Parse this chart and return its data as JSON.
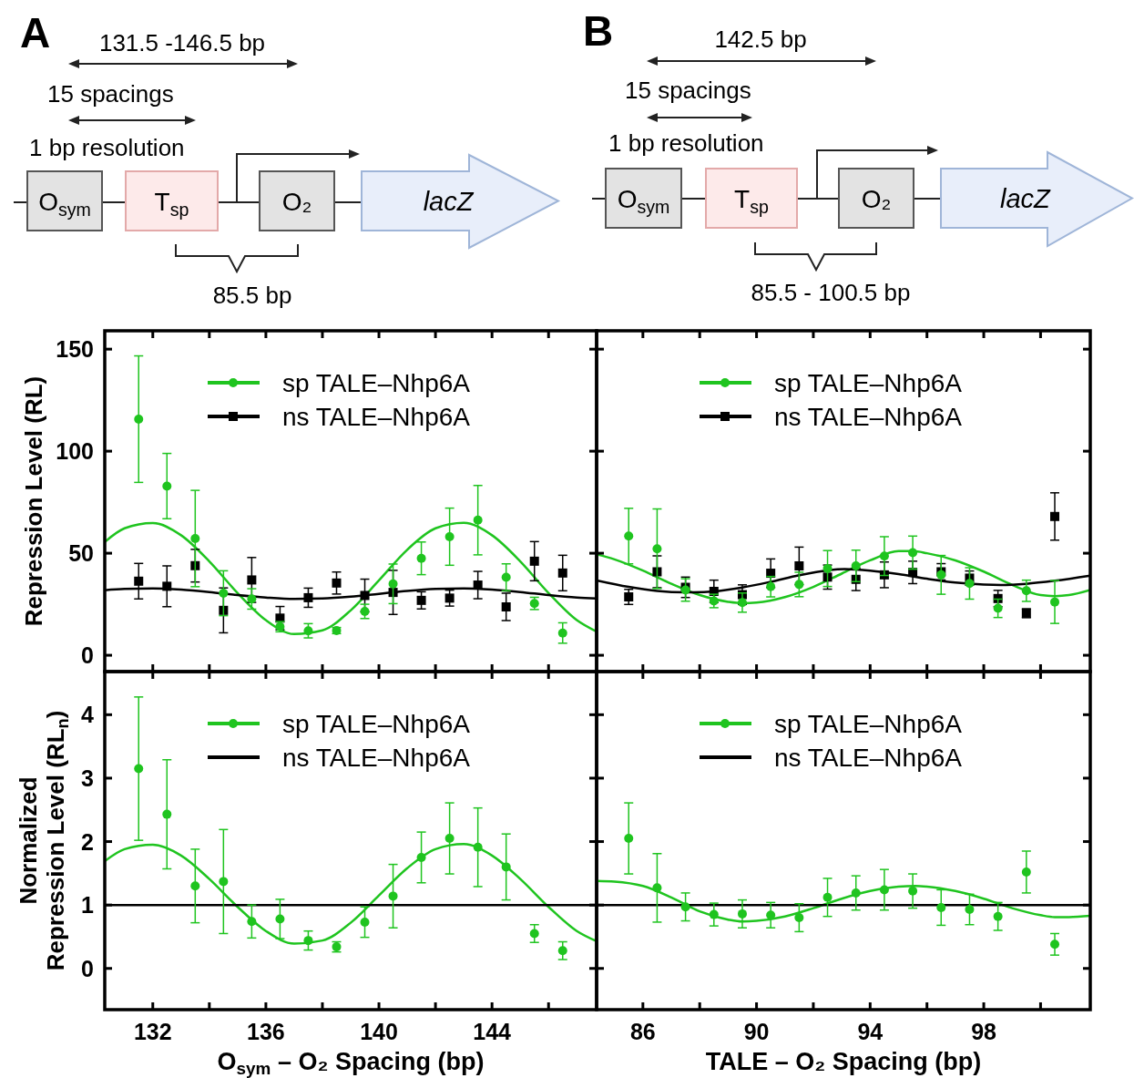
{
  "chart_data": [
    {
      "type": "scatter",
      "ylabel": "Repression Level (RL)",
      "xlim": [
        130.3,
        147.7
      ],
      "ylim": [
        -8,
        159
      ],
      "xticks": [
        132,
        {
          "value": 134,
          "label": null
        },
        136,
        {
          "value": 138,
          "label": null
        },
        140,
        {
          "value": 142,
          "label": null
        },
        144,
        {
          "value": 146,
          "label": null
        }
      ],
      "yticks": [
        0,
        50,
        100,
        150
      ],
      "tick_labels": "y",
      "legend": "top",
      "annotations": [
        "A",
        "131.5 -146.5 bp",
        "15 spacings",
        "1 bp resolution",
        "O$_{sym}$",
        "T$_{sp}$",
        "O₂",
        "lacZ",
        "85.5 bp"
      ],
      "x": [
        131.5,
        132.5,
        133.5,
        134.5,
        135.5,
        136.5,
        137.5,
        138.5,
        139.5,
        140.5,
        141.5,
        142.5,
        143.5,
        144.5,
        145.5,
        146.5
      ],
      "series": [
        {
          "type": "line",
          "color": "#1fc41f",
          "x": [
            130.3,
            131,
            132,
            133,
            134,
            135,
            136,
            137,
            138,
            139,
            140,
            141,
            142,
            143,
            144,
            145,
            146,
            147,
            147.7
          ],
          "values": [
            55.5,
            62.2,
            64.8,
            58.8,
            46.0,
            30.5,
            17.2,
            10.4,
            12.2,
            22.0,
            36.7,
            51.7,
            62.2,
            64.9,
            58.8,
            46.0,
            30.5,
            17.2,
            11.6
          ]
        },
        {
          "type": "line",
          "color": "#000000",
          "x": [
            130.3,
            131,
            132,
            133,
            134,
            135,
            136,
            137,
            138,
            139,
            140,
            141,
            142,
            143,
            144,
            145,
            146,
            147,
            147.7
          ],
          "values": [
            31.9,
            32.5,
            32.8,
            32.2,
            31.0,
            29.5,
            28.3,
            27.6,
            27.8,
            28.7,
            30.1,
            31.5,
            32.5,
            32.8,
            32.2,
            31.0,
            29.5,
            28.3,
            27.8
          ]
        },
        {
          "type": "scatter",
          "name": "sp TALE–Nhp6A",
          "color": "#1fc41f",
          "marker": "circle",
          "values": [
            115.7,
            82.9,
            57.2,
            30.4,
            27.6,
            14.0,
            12.0,
            12.1,
            21.5,
            35.0,
            47.5,
            58.1,
            66.2,
            38.2,
            25.4,
            10.9
          ],
          "errors": [
            31,
            16,
            23.6,
            11,
            5,
            2.5,
            3.5,
            1.5,
            3.5,
            9.7,
            8,
            14,
            17,
            6.6,
            3,
            5
          ]
        },
        {
          "type": "scatter",
          "name": "ns TALE–Nhp6A",
          "color": "#000000",
          "marker": "square",
          "values": [
            36.3,
            33.8,
            43.9,
            22.0,
            36.9,
            18.2,
            28.2,
            35.4,
            29.3,
            30.8,
            26.9,
            28.0,
            34.4,
            23.7,
            46.1,
            40.3
          ],
          "errors": [
            8.7,
            10,
            8,
            11,
            11,
            5.7,
            4.7,
            5.4,
            8,
            10.8,
            4.2,
            3.9,
            6.7,
            6.7,
            9.6,
            8.7
          ]
        }
      ]
    },
    {
      "type": "scatter",
      "xlim": [
        84.37,
        101.75
      ],
      "ylim": [
        -8,
        159
      ],
      "xticks": [
        86,
        {
          "value": 88,
          "label": null
        },
        90,
        {
          "value": 92,
          "label": null
        },
        94,
        {
          "value": 96,
          "label": null
        },
        98,
        {
          "value": 100,
          "label": null
        }
      ],
      "yticks": [
        0,
        50,
        100,
        150
      ],
      "tick_labels": false,
      "legend": "top",
      "annotations": [
        "B",
        "142.5 bp",
        "15 spacings",
        "1 bp resolution",
        "O$_{sym}$",
        "T$_{sp}$",
        "O₂",
        "lacZ",
        "85.5 - 100.5 bp"
      ],
      "x": [
        85.5,
        86.5,
        87.5,
        88.5,
        89.5,
        90.5,
        91.5,
        92.5,
        93.5,
        94.5,
        95.5,
        96.5,
        97.5,
        98.5,
        99.5,
        100.5
      ],
      "series": [
        {
          "type": "line",
          "color": "#1fc41f",
          "x": [
            84.37,
            85,
            86,
            87,
            88,
            89,
            89.5,
            90,
            91,
            92,
            93,
            94,
            95,
            95.5,
            96,
            97,
            98,
            99,
            100,
            100.5,
            101,
            101.75
          ],
          "values": [
            49.5,
            47,
            41.5,
            35,
            29.5,
            26.2,
            25.5,
            25.8,
            28.5,
            33.5,
            40,
            46.5,
            51,
            51,
            50,
            46.5,
            41,
            34.5,
            29.5,
            29,
            29.5,
            32
          ]
        },
        {
          "type": "line",
          "color": "#000000",
          "x": [
            84.37,
            85.5,
            86.5,
            87.5,
            88.5,
            89.5,
            90.5,
            91.5,
            92.5,
            93.1,
            94,
            95,
            96,
            97,
            98,
            98.6,
            99.5,
            100.5,
            101.75
          ],
          "values": [
            36.7,
            33.5,
            31.5,
            30.8,
            31.3,
            33.2,
            36,
            39.2,
            41.6,
            42.2,
            41.5,
            39.8,
            37.5,
            35.6,
            34.6,
            34.4,
            35,
            36.5,
            39
          ]
        },
        {
          "type": "scatter",
          "name": "sp TALE–Nhp6A",
          "color": "#1fc41f",
          "marker": "circle",
          "values": [
            58.4,
            52.2,
            32.0,
            26.6,
            25.8,
            33.6,
            34.7,
            42.5,
            43.8,
            48.6,
            50.3,
            39.4,
            35.2,
            23.0,
            31.6,
            26.1
          ],
          "errors": [
            13.6,
            19.5,
            5.5,
            3.3,
            4.7,
            5,
            6,
            8.8,
            7.7,
            9.5,
            8.1,
            9.5,
            7.7,
            4.5,
            5.2,
            10.5
          ]
        },
        {
          "type": "scatter",
          "name": "ns TALE–Nhp6A",
          "color": "#000000",
          "marker": "square",
          "values": [
            28.6,
            40.9,
            33.3,
            31.3,
            29.7,
            40.2,
            43.8,
            38.3,
            37.2,
            39.4,
            40.6,
            40.9,
            37.8,
            27.8,
            20.6,
            68.0
          ],
          "errors": [
            3.7,
            7.8,
            5,
            5.5,
            4.8,
            7,
            9.2,
            5.9,
            5.5,
            6.3,
            5.5,
            4,
            3.5,
            4,
            2.2,
            11.6
          ]
        }
      ]
    },
    {
      "type": "scatter",
      "ylabel": "Normalized\nRepression Level (RL$_{n}$)",
      "xlabel": "O$_{sym}$ – O₂ Spacing (bp)",
      "xlim": [
        130.3,
        147.7
      ],
      "ylim": [
        -0.65,
        4.68
      ],
      "xticks": [
        132,
        {
          "value": 134,
          "label": null
        },
        136,
        {
          "value": 138,
          "label": null
        },
        140,
        {
          "value": 142,
          "label": null
        },
        144,
        {
          "value": 146,
          "label": null
        }
      ],
      "yticks": [
        0,
        1,
        2,
        3,
        4
      ],
      "legend": "top",
      "x": [
        131.5,
        132.5,
        133.5,
        134.5,
        135.5,
        136.5,
        137.5,
        138.5,
        139.5,
        140.5,
        141.5,
        142.5,
        143.5,
        144.5,
        145.5,
        146.5
      ],
      "series": [
        {
          "type": "line",
          "color": "#1fc41f",
          "x": [
            130.3,
            131,
            132,
            133,
            134,
            135,
            136,
            137,
            138,
            139,
            140,
            141,
            142,
            143,
            144,
            145,
            146,
            147,
            147.7
          ],
          "values": [
            1.69,
            1.88,
            1.95,
            1.78,
            1.41,
            0.97,
            0.59,
            0.39,
            0.44,
            0.72,
            1.15,
            1.58,
            1.88,
            1.96,
            1.78,
            1.41,
            0.97,
            0.59,
            0.43
          ]
        },
        {
          "type": "scatter",
          "name": "sp TALE–Nhp6A",
          "color": "#1fc41f",
          "marker": "circle",
          "values": [
            3.15,
            2.43,
            1.3,
            1.37,
            0.74,
            0.78,
            0.44,
            0.34,
            0.73,
            1.14,
            1.75,
            2.05,
            1.91,
            1.6,
            0.55,
            0.28
          ],
          "errors": [
            1.13,
            0.86,
            0.58,
            0.82,
            0.26,
            0.31,
            0.15,
            0.08,
            0.24,
            0.5,
            0.4,
            0.56,
            0.62,
            0.52,
            0.14,
            0.14
          ]
        },
        {
          "type": "line",
          "name": "ns TALE–Nhp6A",
          "color": "#000000",
          "x": [
            130.3,
            147.7
          ],
          "values": [
            1,
            1
          ]
        }
      ]
    },
    {
      "type": "scatter",
      "xlabel": "TALE – O₂ Spacing (bp)",
      "xlim": [
        84.37,
        101.75
      ],
      "ylim": [
        -0.65,
        4.68
      ],
      "xticks": [
        86,
        {
          "value": 88,
          "label": null
        },
        90,
        {
          "value": 92,
          "label": null
        },
        94,
        {
          "value": 96,
          "label": null
        },
        98,
        {
          "value": 100,
          "label": null
        }
      ],
      "yticks": [
        0,
        1,
        2,
        3,
        4
      ],
      "tick_labels": "x",
      "legend": "top",
      "x": [
        85.5,
        86.5,
        87.5,
        88.5,
        89.5,
        90.5,
        91.5,
        92.5,
        93.5,
        94.5,
        95.5,
        96.5,
        97.5,
        98.5,
        99.5,
        100.5
      ],
      "series": [
        {
          "type": "line",
          "color": "#1fc41f",
          "x": [
            84.37,
            85,
            86,
            87,
            88,
            89,
            89.5,
            90,
            91,
            92,
            93,
            94,
            95,
            95.6,
            96,
            97,
            98,
            99,
            100,
            100.5,
            101,
            101.75
          ],
          "values": [
            1.38,
            1.37,
            1.3,
            1.12,
            0.9,
            0.77,
            0.74,
            0.75,
            0.82,
            0.95,
            1.1,
            1.22,
            1.29,
            1.3,
            1.29,
            1.22,
            1.1,
            0.95,
            0.84,
            0.81,
            0.81,
            0.83
          ]
        },
        {
          "type": "scatter",
          "name": "sp TALE–Nhp6A",
          "color": "#1fc41f",
          "marker": "circle",
          "values": [
            2.05,
            1.27,
            0.97,
            0.85,
            0.86,
            0.84,
            0.8,
            1.12,
            1.19,
            1.24,
            1.22,
            0.96,
            0.93,
            0.82,
            1.52,
            0.38
          ],
          "errors": [
            0.56,
            0.54,
            0.22,
            0.18,
            0.22,
            0.2,
            0.22,
            0.3,
            0.27,
            0.32,
            0.27,
            0.28,
            0.24,
            0.22,
            0.33,
            0.17
          ]
        },
        {
          "type": "line",
          "name": "ns TALE–Nhp6A",
          "color": "#000000",
          "x": [
            84.37,
            101.75
          ],
          "values": [
            1,
            1
          ]
        }
      ]
    }
  ]
}
